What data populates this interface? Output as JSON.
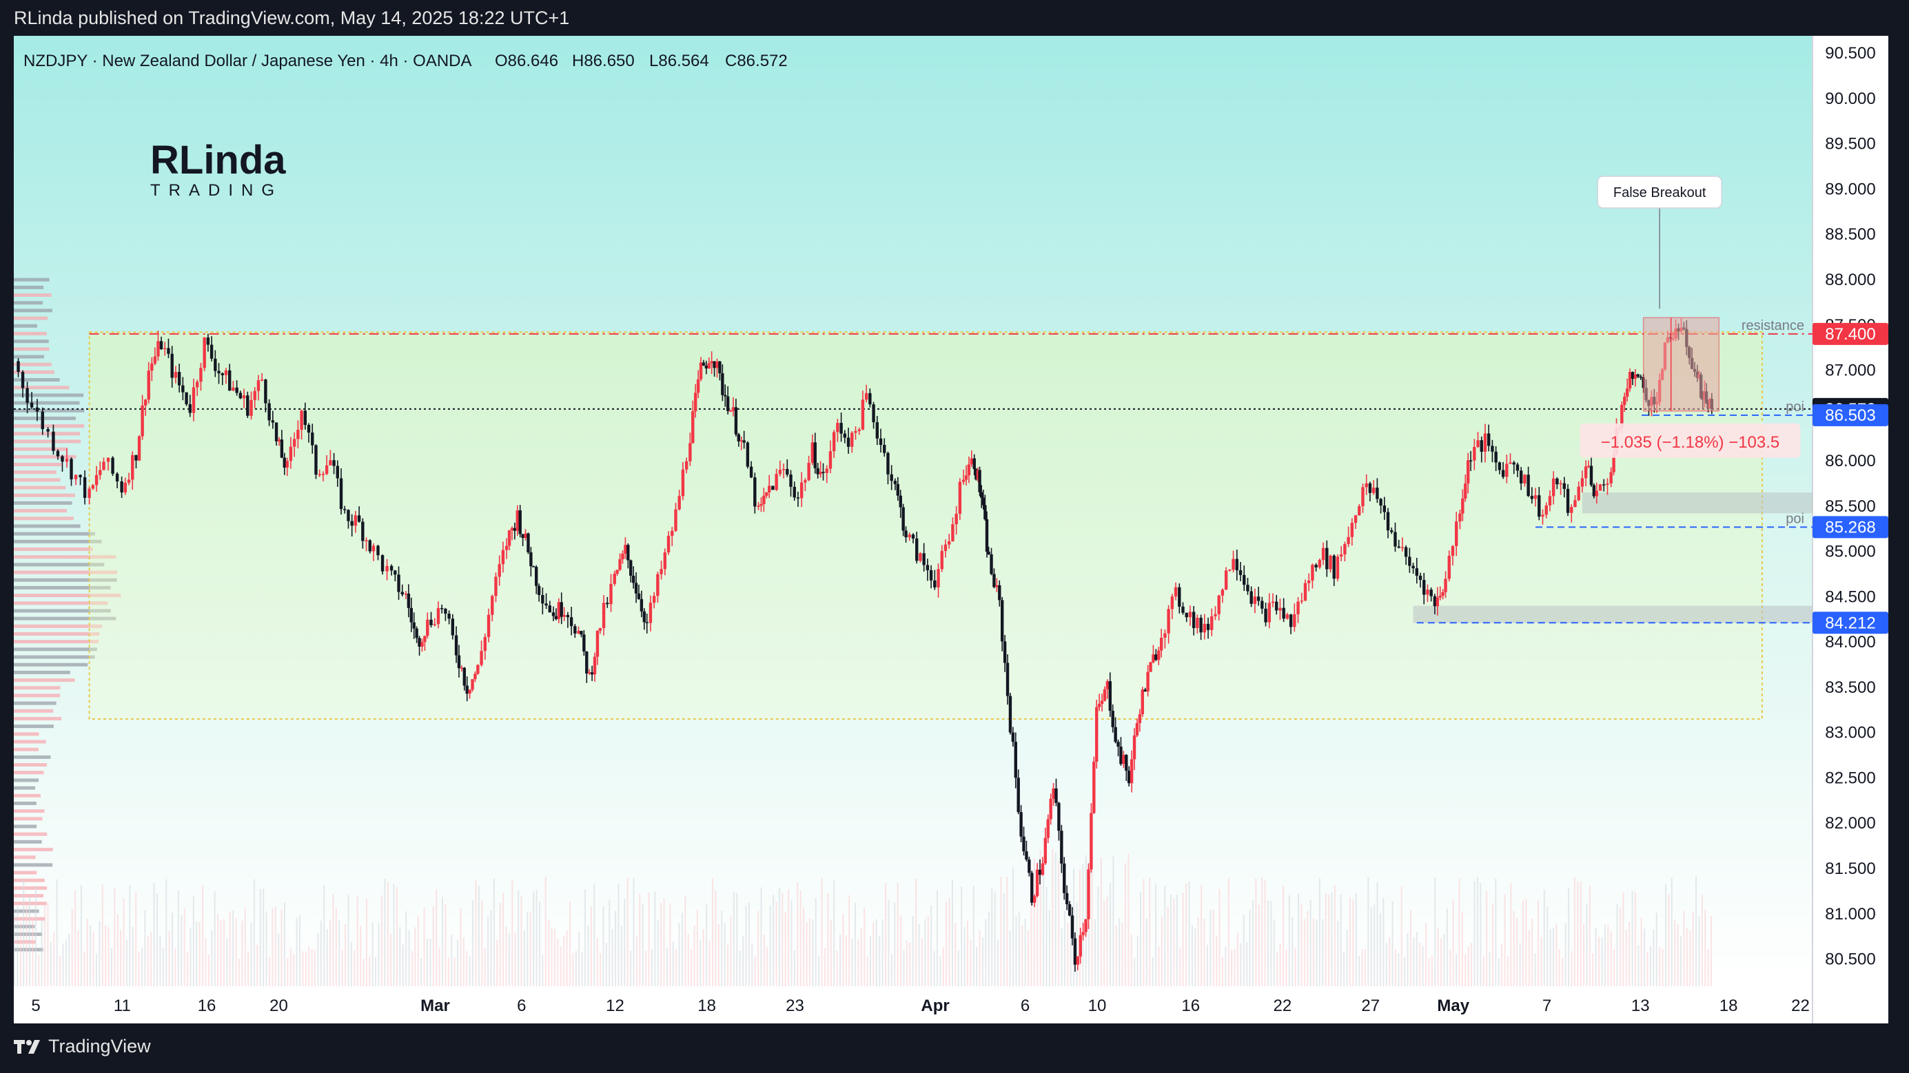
{
  "header": {
    "published_by": "RLinda published on TradingView.com, May 14, 2025 18:22 UTC+1"
  },
  "footer": {
    "brand": "TradingView"
  },
  "legend": {
    "symbol": "NZDJPY · New Zealand Dollar / Japanese Yen · 4h · OANDA",
    "open": "O86.646",
    "high": "H86.650",
    "low": "L86.564",
    "close": "C86.572"
  },
  "logo": {
    "line1": "RLinda",
    "line2": "TRADING"
  },
  "colors": {
    "up": "#f23645",
    "down": "#131722",
    "resistance": "#f23645",
    "poi": "#2962ff",
    "price": "#131722",
    "background_top": "#a6ebe6",
    "background_bottom": "#ffffff"
  },
  "chart_data": {
    "type": "candlestick",
    "symbol": "NZDJPY",
    "timeframe": "4h",
    "ylim": [
      80.2,
      90.6
    ],
    "y_ticks": [
      "90.500",
      "90.000",
      "89.500",
      "89.000",
      "88.500",
      "88.000",
      "87.500",
      "87.000",
      "86.500",
      "86.000",
      "85.500",
      "85.000",
      "84.500",
      "84.000",
      "83.500",
      "83.000",
      "82.500",
      "82.000",
      "81.500",
      "81.000",
      "80.500"
    ],
    "x_ticks": [
      {
        "label": "5",
        "pos": 0.01
      },
      {
        "label": "11",
        "pos": 0.058
      },
      {
        "label": "16",
        "pos": 0.105
      },
      {
        "label": "20",
        "pos": 0.145
      },
      {
        "label": "Mar",
        "pos": 0.232,
        "bold": true
      },
      {
        "label": "6",
        "pos": 0.28
      },
      {
        "label": "12",
        "pos": 0.332
      },
      {
        "label": "18",
        "pos": 0.383
      },
      {
        "label": "23",
        "pos": 0.432
      },
      {
        "label": "Apr",
        "pos": 0.51,
        "bold": true
      },
      {
        "label": "6",
        "pos": 0.56
      },
      {
        "label": "10",
        "pos": 0.6
      },
      {
        "label": "16",
        "pos": 0.652
      },
      {
        "label": "22",
        "pos": 0.703
      },
      {
        "label": "27",
        "pos": 0.752
      },
      {
        "label": "May",
        "pos": 0.798,
        "bold": true
      },
      {
        "label": "7",
        "pos": 0.85
      },
      {
        "label": "13",
        "pos": 0.902
      },
      {
        "label": "18",
        "pos": 0.951
      },
      {
        "label": "22",
        "pos": 0.991
      }
    ],
    "ohlc_path": [
      [
        0.0,
        87.1
      ],
      [
        0.01,
        86.6
      ],
      [
        0.022,
        86.2
      ],
      [
        0.032,
        85.9
      ],
      [
        0.042,
        85.6
      ],
      [
        0.05,
        86.0
      ],
      [
        0.06,
        85.7
      ],
      [
        0.068,
        86.1
      ],
      [
        0.075,
        87.0
      ],
      [
        0.082,
        87.3
      ],
      [
        0.09,
        86.9
      ],
      [
        0.098,
        86.6
      ],
      [
        0.106,
        87.3
      ],
      [
        0.114,
        87.0
      ],
      [
        0.122,
        86.8
      ],
      [
        0.13,
        86.6
      ],
      [
        0.138,
        86.9
      ],
      [
        0.146,
        86.2
      ],
      [
        0.152,
        85.9
      ],
      [
        0.16,
        86.6
      ],
      [
        0.168,
        85.9
      ],
      [
        0.176,
        86.0
      ],
      [
        0.184,
        85.4
      ],
      [
        0.192,
        85.3
      ],
      [
        0.2,
        85.0
      ],
      [
        0.21,
        84.7
      ],
      [
        0.218,
        84.5
      ],
      [
        0.224,
        84.0
      ],
      [
        0.23,
        84.2
      ],
      [
        0.238,
        84.4
      ],
      [
        0.246,
        83.9
      ],
      [
        0.252,
        83.5
      ],
      [
        0.258,
        83.7
      ],
      [
        0.266,
        84.5
      ],
      [
        0.274,
        85.1
      ],
      [
        0.28,
        85.4
      ],
      [
        0.286,
        85.0
      ],
      [
        0.292,
        84.6
      ],
      [
        0.3,
        84.3
      ],
      [
        0.306,
        84.4
      ],
      [
        0.314,
        84.1
      ],
      [
        0.32,
        83.6
      ],
      [
        0.326,
        84.2
      ],
      [
        0.334,
        84.7
      ],
      [
        0.34,
        85.0
      ],
      [
        0.346,
        84.6
      ],
      [
        0.352,
        84.2
      ],
      [
        0.36,
        84.8
      ],
      [
        0.368,
        85.4
      ],
      [
        0.376,
        86.3
      ],
      [
        0.382,
        87.0
      ],
      [
        0.388,
        87.2
      ],
      [
        0.394,
        86.8
      ],
      [
        0.4,
        86.5
      ],
      [
        0.406,
        86.1
      ],
      [
        0.414,
        85.4
      ],
      [
        0.42,
        85.7
      ],
      [
        0.428,
        85.9
      ],
      [
        0.436,
        85.6
      ],
      [
        0.444,
        86.1
      ],
      [
        0.45,
        85.8
      ],
      [
        0.458,
        86.4
      ],
      [
        0.466,
        86.2
      ],
      [
        0.474,
        86.7
      ],
      [
        0.482,
        86.2
      ],
      [
        0.49,
        85.7
      ],
      [
        0.496,
        85.2
      ],
      [
        0.504,
        84.9
      ],
      [
        0.512,
        84.7
      ],
      [
        0.52,
        85.1
      ],
      [
        0.528,
        85.9
      ],
      [
        0.534,
        86.0
      ],
      [
        0.538,
        85.6
      ],
      [
        0.542,
        84.9
      ],
      [
        0.548,
        84.4
      ],
      [
        0.554,
        83.1
      ],
      [
        0.56,
        81.9
      ],
      [
        0.566,
        81.2
      ],
      [
        0.572,
        81.6
      ],
      [
        0.578,
        82.4
      ],
      [
        0.584,
        81.3
      ],
      [
        0.59,
        80.5
      ],
      [
        0.596,
        81.0
      ],
      [
        0.602,
        83.2
      ],
      [
        0.608,
        83.5
      ],
      [
        0.614,
        82.8
      ],
      [
        0.62,
        82.5
      ],
      [
        0.626,
        83.3
      ],
      [
        0.632,
        83.7
      ],
      [
        0.638,
        84.1
      ],
      [
        0.646,
        84.5
      ],
      [
        0.654,
        84.3
      ],
      [
        0.662,
        84.1
      ],
      [
        0.67,
        84.5
      ],
      [
        0.678,
        85.0
      ],
      [
        0.686,
        84.6
      ],
      [
        0.694,
        84.3
      ],
      [
        0.702,
        84.4
      ],
      [
        0.71,
        84.2
      ],
      [
        0.718,
        84.6
      ],
      [
        0.726,
        85.0
      ],
      [
        0.734,
        84.8
      ],
      [
        0.742,
        85.2
      ],
      [
        0.75,
        85.7
      ],
      [
        0.758,
        85.6
      ],
      [
        0.766,
        85.2
      ],
      [
        0.774,
        84.9
      ],
      [
        0.782,
        84.7
      ],
      [
        0.79,
        84.4
      ],
      [
        0.796,
        84.7
      ],
      [
        0.804,
        85.5
      ],
      [
        0.81,
        86.1
      ],
      [
        0.818,
        86.2
      ],
      [
        0.826,
        85.9
      ],
      [
        0.834,
        86.0
      ],
      [
        0.842,
        85.7
      ],
      [
        0.85,
        85.4
      ],
      [
        0.858,
        85.8
      ],
      [
        0.866,
        85.4
      ],
      [
        0.874,
        86.0
      ],
      [
        0.88,
        85.6
      ],
      [
        0.888,
        85.9
      ],
      [
        0.894,
        86.6
      ],
      [
        0.9,
        87.0
      ],
      [
        0.906,
        86.8
      ],
      [
        0.912,
        86.6
      ],
      [
        0.918,
        87.2
      ],
      [
        0.924,
        87.5
      ],
      [
        0.93,
        87.3
      ],
      [
        0.936,
        86.9
      ],
      [
        0.94,
        86.7
      ],
      [
        0.944,
        86.57
      ]
    ],
    "levels": [
      {
        "name": "resistance",
        "value": 87.4,
        "label": "resistance",
        "tag": "87.400",
        "color": "#f23645",
        "style": "dash-dot"
      },
      {
        "name": "price",
        "value": 86.572,
        "label": "",
        "tag": "86.572",
        "color": "#131722",
        "style": "dotted"
      },
      {
        "name": "poi-upper",
        "value": 86.503,
        "label": "poi",
        "tag": "86.503",
        "color": "#2962ff",
        "style": "dashed"
      },
      {
        "name": "poi-lower",
        "value": 85.268,
        "label": "poi",
        "tag": "85.268",
        "color": "#2962ff",
        "style": "dashed"
      },
      {
        "name": "support",
        "value": 84.212,
        "label": "",
        "tag": "84.212",
        "color": "#2962ff",
        "style": "dashed"
      }
    ],
    "range_box": {
      "x0": 0.042,
      "x1": 0.972,
      "y_top": 87.42,
      "y_bottom": 83.15
    },
    "zones": [
      {
        "x0": 0.872,
        "x1": 1.0,
        "y_top": 85.65,
        "y_bottom": 85.42
      },
      {
        "x0": 0.778,
        "x1": 1.0,
        "y_top": 84.4,
        "y_bottom": 84.21
      }
    ],
    "short_position": {
      "x0": 0.906,
      "x1": 0.948,
      "entry": 87.58,
      "target": 86.55
    },
    "annotation": {
      "text": "False Breakout",
      "x": 0.915,
      "price": 87.68
    },
    "measure_label": {
      "text": "−1.035 (−1.18%) −103.5",
      "x": 0.932,
      "price": 86.2
    }
  }
}
